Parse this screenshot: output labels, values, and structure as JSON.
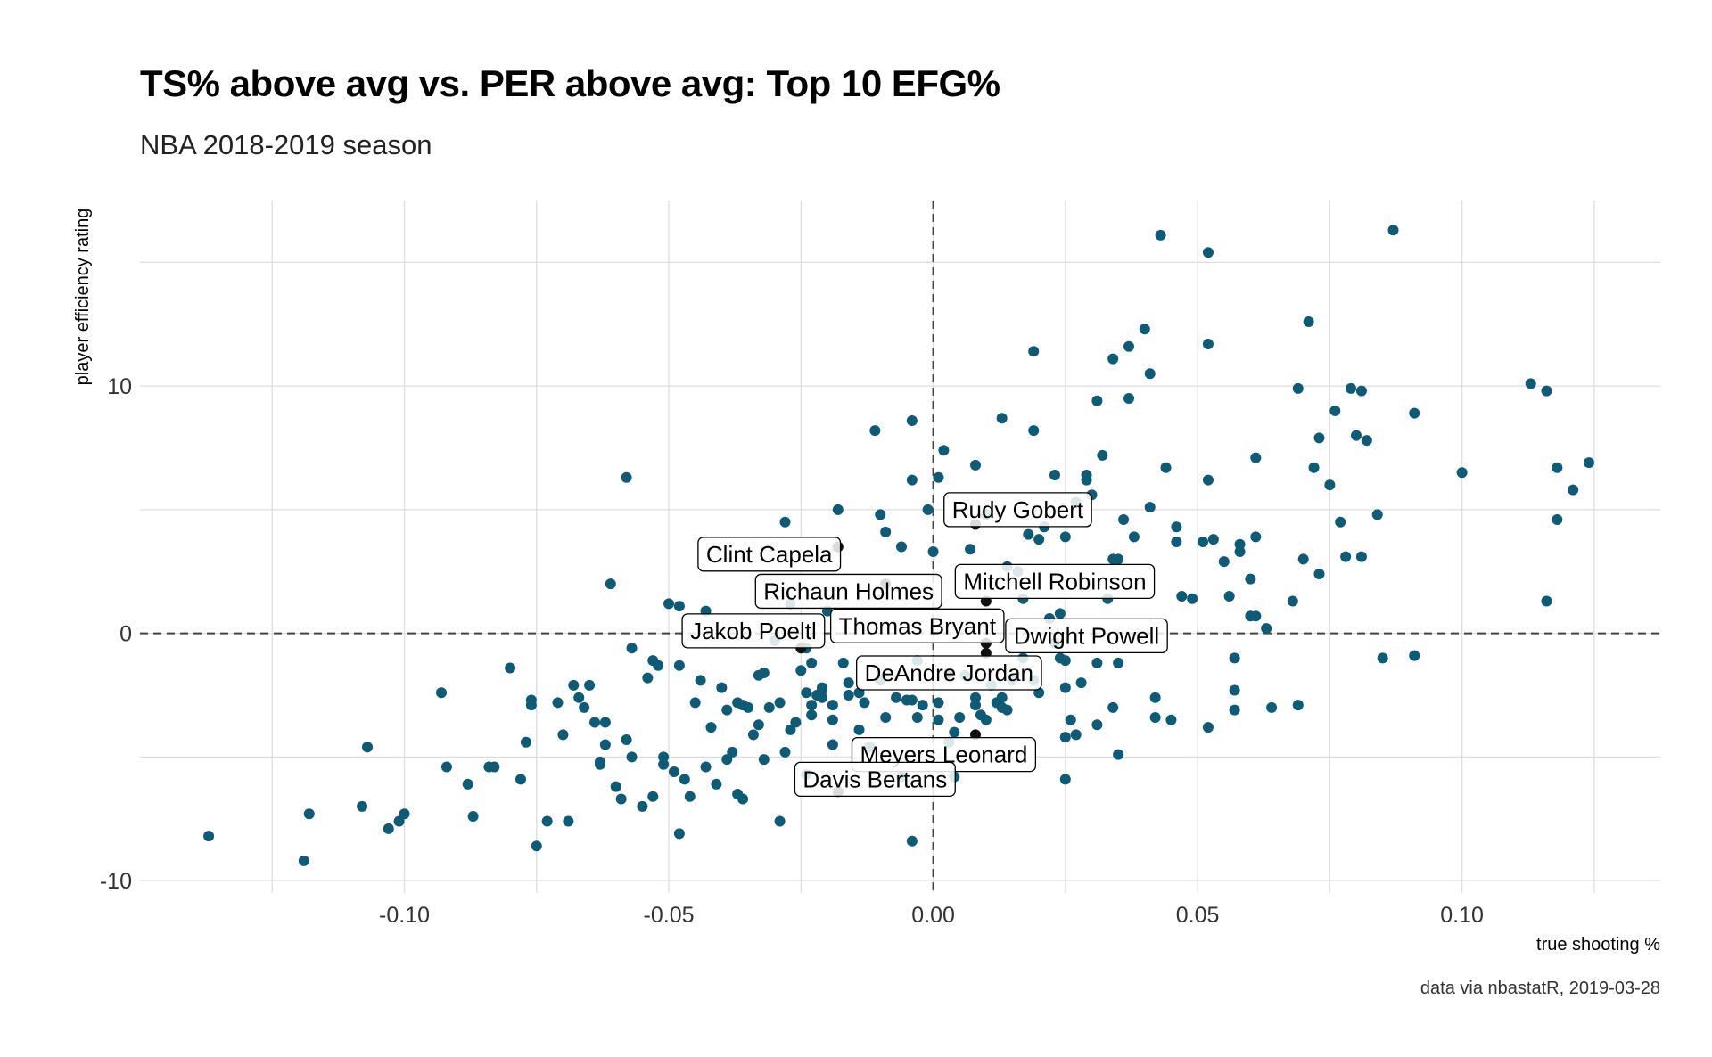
{
  "chart_data": {
    "type": "scatter",
    "title": "TS% above avg vs. PER above avg: Top 10 EFG%",
    "subtitle": "NBA 2018-2019 season",
    "xlabel": "true shooting %",
    "ylabel": "player efficiency rating",
    "caption": "data via nbastatR, 2019-03-28",
    "xlim": [
      -0.15,
      0.1375
    ],
    "ylim": [
      -10.5,
      17.5
    ],
    "x_ticks": [
      -0.1,
      -0.05,
      0.0,
      0.05,
      0.1
    ],
    "x_tick_labels": [
      "-0.10",
      "-0.05",
      "0.00",
      "0.05",
      "0.10"
    ],
    "y_ticks": [
      -10,
      0,
      10
    ],
    "y_tick_labels": [
      "-10",
      "0",
      "10"
    ],
    "grid": true,
    "reference_lines": {
      "x": 0,
      "y": 0
    },
    "colors": {
      "point": "#0f5a75",
      "highlight": "#111111",
      "grid": "#dedede",
      "refline": "#444444"
    },
    "series": [
      {
        "points": [
          [
            -0.137,
            -8.2
          ],
          [
            -0.119,
            -9.2
          ],
          [
            -0.118,
            -7.3
          ],
          [
            -0.108,
            -7.0
          ],
          [
            -0.107,
            -4.6
          ],
          [
            -0.103,
            -7.9
          ],
          [
            -0.101,
            -7.6
          ],
          [
            -0.1,
            -7.3
          ],
          [
            -0.093,
            -2.4
          ],
          [
            -0.092,
            -5.4
          ],
          [
            -0.088,
            -6.1
          ],
          [
            -0.087,
            -7.4
          ],
          [
            -0.084,
            -5.4
          ],
          [
            -0.083,
            -5.4
          ],
          [
            -0.08,
            -1.4
          ],
          [
            -0.078,
            -5.9
          ],
          [
            -0.077,
            -4.4
          ],
          [
            -0.076,
            -2.7
          ],
          [
            -0.076,
            -2.9
          ],
          [
            -0.075,
            -8.6
          ],
          [
            -0.073,
            -7.6
          ],
          [
            -0.071,
            -2.8
          ],
          [
            -0.07,
            -4.1
          ],
          [
            -0.069,
            -7.6
          ],
          [
            -0.068,
            -2.1
          ],
          [
            -0.067,
            -2.6
          ],
          [
            -0.066,
            -3.0
          ],
          [
            -0.065,
            -2.1
          ],
          [
            -0.064,
            -3.6
          ],
          [
            -0.063,
            -5.3
          ],
          [
            -0.063,
            -5.2
          ],
          [
            -0.062,
            -4.5
          ],
          [
            -0.062,
            -3.6
          ],
          [
            -0.061,
            2.0
          ],
          [
            -0.06,
            -6.2
          ],
          [
            -0.059,
            -6.7
          ],
          [
            -0.058,
            -4.3
          ],
          [
            -0.058,
            6.3
          ],
          [
            -0.057,
            -0.6
          ],
          [
            -0.057,
            -5.0
          ],
          [
            -0.055,
            -7.0
          ],
          [
            -0.054,
            -1.8
          ],
          [
            -0.053,
            -6.6
          ],
          [
            -0.053,
            -1.1
          ],
          [
            -0.052,
            -1.3
          ],
          [
            -0.051,
            -5.0
          ],
          [
            -0.051,
            -5.3
          ],
          [
            -0.05,
            1.2
          ],
          [
            -0.049,
            -5.6
          ],
          [
            -0.048,
            -8.1
          ],
          [
            -0.048,
            1.1
          ],
          [
            -0.048,
            -1.3
          ],
          [
            -0.047,
            -5.9
          ],
          [
            -0.046,
            -6.6
          ],
          [
            -0.045,
            -2.8
          ],
          [
            -0.044,
            -1.9
          ],
          [
            -0.043,
            0.9
          ],
          [
            -0.043,
            -5.4
          ],
          [
            -0.042,
            -3.8
          ],
          [
            -0.041,
            -6.1
          ],
          [
            -0.04,
            -2.2
          ],
          [
            -0.039,
            -5.1
          ],
          [
            -0.039,
            -3.1
          ],
          [
            -0.038,
            -4.8
          ],
          [
            -0.037,
            -2.8
          ],
          [
            -0.037,
            -6.5
          ],
          [
            -0.036,
            -6.7
          ],
          [
            -0.036,
            -2.9
          ],
          [
            -0.035,
            -3.0
          ],
          [
            -0.034,
            -4.1
          ],
          [
            -0.033,
            -1.7
          ],
          [
            -0.033,
            -3.7
          ],
          [
            -0.032,
            -5.1
          ],
          [
            -0.032,
            -1.6
          ],
          [
            -0.031,
            -3.0
          ],
          [
            -0.03,
            -0.3
          ],
          [
            -0.029,
            -2.8
          ],
          [
            -0.029,
            -7.6
          ],
          [
            -0.028,
            -4.8
          ],
          [
            -0.028,
            4.5
          ],
          [
            -0.027,
            -3.9
          ],
          [
            -0.027,
            1.2
          ],
          [
            -0.026,
            -3.6
          ],
          [
            -0.025,
            -1.5
          ],
          [
            -0.024,
            -0.6
          ],
          [
            -0.024,
            -2.4
          ],
          [
            -0.024,
            -5.7
          ],
          [
            -0.023,
            -1.2
          ],
          [
            -0.023,
            -3.3
          ],
          [
            -0.023,
            -2.9
          ],
          [
            -0.022,
            -2.5
          ],
          [
            -0.021,
            -2.6
          ],
          [
            -0.021,
            -2.3
          ],
          [
            -0.021,
            -2.2
          ],
          [
            -0.02,
            0.9
          ],
          [
            -0.019,
            -3.5
          ],
          [
            -0.019,
            -4.5
          ],
          [
            -0.019,
            -2.9
          ],
          [
            -0.018,
            -6.4
          ],
          [
            -0.018,
            5.0
          ],
          [
            -0.017,
            -1.2
          ],
          [
            -0.016,
            -2.0
          ],
          [
            -0.016,
            -2.5
          ],
          [
            -0.014,
            -2.4
          ],
          [
            -0.014,
            -3.9
          ],
          [
            -0.013,
            -2.8
          ],
          [
            -0.012,
            -4.6
          ],
          [
            -0.011,
            8.2
          ],
          [
            -0.01,
            4.8
          ],
          [
            -0.01,
            -1.9
          ],
          [
            -0.009,
            4.1
          ],
          [
            -0.009,
            -3.4
          ],
          [
            -0.007,
            -2.6
          ],
          [
            -0.006,
            3.5
          ],
          [
            -0.006,
            -5.8
          ],
          [
            -0.005,
            -2.7
          ],
          [
            -0.004,
            -2.7
          ],
          [
            -0.004,
            8.6
          ],
          [
            -0.004,
            6.2
          ],
          [
            -0.004,
            -8.4
          ],
          [
            -0.003,
            -3.4
          ],
          [
            -0.003,
            -1.1
          ],
          [
            -0.002,
            -2.9
          ],
          [
            -0.001,
            5.0
          ],
          [
            0.0,
            3.3
          ],
          [
            0.001,
            -2.8
          ],
          [
            0.001,
            6.3
          ],
          [
            0.001,
            -3.5
          ],
          [
            0.002,
            7.4
          ],
          [
            0.003,
            -4.4
          ],
          [
            0.004,
            -4.0
          ],
          [
            0.004,
            -5.8
          ],
          [
            0.005,
            -3.4
          ],
          [
            0.006,
            -1.7
          ],
          [
            0.007,
            3.4
          ],
          [
            0.008,
            6.8
          ],
          [
            0.008,
            -2.6
          ],
          [
            0.008,
            -2.9
          ],
          [
            0.009,
            -3.3
          ],
          [
            0.01,
            -3.5
          ],
          [
            0.01,
            4.8
          ],
          [
            0.011,
            -2.1
          ],
          [
            0.012,
            -2.8
          ],
          [
            0.013,
            -3.0
          ],
          [
            0.013,
            -2.6
          ],
          [
            0.013,
            8.7
          ],
          [
            0.014,
            2.7
          ],
          [
            0.014,
            -3.1
          ],
          [
            0.015,
            -1.9
          ],
          [
            0.016,
            2.5
          ],
          [
            0.017,
            1.4
          ],
          [
            0.017,
            -1.0
          ],
          [
            0.018,
            4.0
          ],
          [
            0.019,
            8.2
          ],
          [
            0.019,
            11.4
          ],
          [
            0.019,
            -1.9
          ],
          [
            0.02,
            -2.4
          ],
          [
            0.02,
            3.8
          ],
          [
            0.021,
            4.3
          ],
          [
            0.022,
            0.6
          ],
          [
            0.023,
            6.4
          ],
          [
            0.023,
            -0.4
          ],
          [
            0.024,
            -1.0
          ],
          [
            0.024,
            0.8
          ],
          [
            0.025,
            -1.1
          ],
          [
            0.025,
            3.9
          ],
          [
            0.025,
            -2.2
          ],
          [
            0.025,
            -4.2
          ],
          [
            0.025,
            -5.9
          ],
          [
            0.026,
            -3.5
          ],
          [
            0.027,
            -4.1
          ],
          [
            0.027,
            5.3
          ],
          [
            0.028,
            -2.0
          ],
          [
            0.029,
            6.4
          ],
          [
            0.029,
            6.2
          ],
          [
            0.03,
            5.6
          ],
          [
            0.031,
            9.4
          ],
          [
            0.031,
            -3.7
          ],
          [
            0.031,
            -1.2
          ],
          [
            0.032,
            7.2
          ],
          [
            0.033,
            1.4
          ],
          [
            0.034,
            3.0
          ],
          [
            0.034,
            11.1
          ],
          [
            0.034,
            -3.0
          ],
          [
            0.035,
            3.0
          ],
          [
            0.035,
            -1.2
          ],
          [
            0.035,
            -4.9
          ],
          [
            0.036,
            4.6
          ],
          [
            0.037,
            11.6
          ],
          [
            0.037,
            9.5
          ],
          [
            0.038,
            3.9
          ],
          [
            0.04,
            12.3
          ],
          [
            0.041,
            5.1
          ],
          [
            0.041,
            10.5
          ],
          [
            0.042,
            -2.6
          ],
          [
            0.042,
            -3.4
          ],
          [
            0.043,
            16.1
          ],
          [
            0.044,
            6.7
          ],
          [
            0.045,
            -3.5
          ],
          [
            0.046,
            4.3
          ],
          [
            0.046,
            3.7
          ],
          [
            0.047,
            1.5
          ],
          [
            0.049,
            1.4
          ],
          [
            0.051,
            3.7
          ],
          [
            0.052,
            11.7
          ],
          [
            0.052,
            15.4
          ],
          [
            0.052,
            6.2
          ],
          [
            0.052,
            -3.8
          ],
          [
            0.053,
            3.8
          ],
          [
            0.055,
            2.9
          ],
          [
            0.056,
            1.5
          ],
          [
            0.057,
            -1.0
          ],
          [
            0.057,
            -2.3
          ],
          [
            0.057,
            -3.1
          ],
          [
            0.058,
            3.6
          ],
          [
            0.058,
            3.3
          ],
          [
            0.06,
            0.7
          ],
          [
            0.06,
            2.2
          ],
          [
            0.061,
            0.7
          ],
          [
            0.061,
            3.9
          ],
          [
            0.061,
            7.1
          ],
          [
            0.063,
            0.2
          ],
          [
            0.064,
            -3.0
          ],
          [
            0.068,
            1.3
          ],
          [
            0.069,
            -2.9
          ],
          [
            0.069,
            9.9
          ],
          [
            0.07,
            3.0
          ],
          [
            0.071,
            12.6
          ],
          [
            0.072,
            6.7
          ],
          [
            0.073,
            7.9
          ],
          [
            0.073,
            2.4
          ],
          [
            0.075,
            6.0
          ],
          [
            0.076,
            9.0
          ],
          [
            0.077,
            4.5
          ],
          [
            0.078,
            3.1
          ],
          [
            0.079,
            9.9
          ],
          [
            0.08,
            8.0
          ],
          [
            0.081,
            3.1
          ],
          [
            0.081,
            9.8
          ],
          [
            0.082,
            7.8
          ],
          [
            0.084,
            4.8
          ],
          [
            0.085,
            -1.0
          ],
          [
            0.087,
            16.3
          ],
          [
            0.091,
            8.9
          ],
          [
            0.091,
            -0.9
          ],
          [
            0.1,
            6.5
          ],
          [
            0.113,
            10.1
          ],
          [
            0.116,
            9.8
          ],
          [
            0.116,
            1.3
          ],
          [
            0.118,
            6.7
          ],
          [
            0.118,
            4.6
          ],
          [
            0.121,
            5.8
          ],
          [
            0.124,
            6.9
          ]
        ]
      },
      {
        "labeled_points": [
          {
            "name": "Rudy Gobert",
            "x": 0.008,
            "y": 4.4
          },
          {
            "name": "Clint Capela",
            "x": -0.018,
            "y": 3.5
          },
          {
            "name": "Mitchell Robinson",
            "x": 0.01,
            "y": 1.3
          },
          {
            "name": "Richaun Holmes",
            "x": -0.009,
            "y": 2.0
          },
          {
            "name": "Jakob Poeltl",
            "x": -0.025,
            "y": -0.6
          },
          {
            "name": "Thomas Bryant",
            "x": 0.01,
            "y": -0.4
          },
          {
            "name": "Dwight Powell",
            "x": 0.01,
            "y": -0.8
          },
          {
            "name": "DeAndre Jordan",
            "x": 0.003,
            "y": -1.6
          },
          {
            "name": "Meyers Leonard",
            "x": 0.008,
            "y": -4.1
          },
          {
            "name": "Davis Bertans",
            "x": -0.018,
            "y": -6.4
          }
        ]
      }
    ]
  },
  "label_boxes": [
    {
      "name": "Rudy Gobert",
      "bx": 0.016,
      "by": 5.0
    },
    {
      "name": "Clint Capela",
      "bx": -0.031,
      "by": 3.2
    },
    {
      "name": "Mitchell Robinson",
      "bx": 0.023,
      "by": 2.1
    },
    {
      "name": "Richaun Holmes",
      "bx": -0.016,
      "by": 1.7
    },
    {
      "name": "Jakob Poeltl",
      "bx": -0.034,
      "by": 0.1
    },
    {
      "name": "Thomas Bryant",
      "bx": -0.003,
      "by": 0.3
    },
    {
      "name": "Dwight Powell",
      "bx": 0.029,
      "by": -0.1
    },
    {
      "name": "DeAndre Jordan",
      "bx": 0.003,
      "by": -1.6
    },
    {
      "name": "Meyers Leonard",
      "bx": 0.002,
      "by": -4.9
    },
    {
      "name": "Davis Bertans",
      "bx": -0.011,
      "by": -5.9
    }
  ]
}
